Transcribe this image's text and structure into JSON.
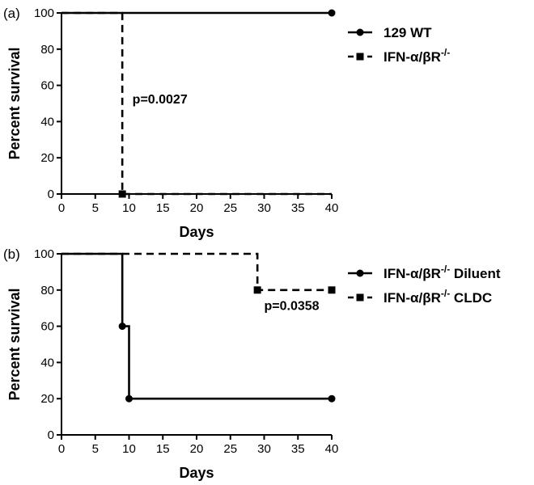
{
  "chart_data": [
    {
      "type": "line",
      "panel_label": "(a)",
      "xlabel": "Days",
      "ylabel": "Percent survival",
      "xlim": [
        0,
        40
      ],
      "ylim": [
        0,
        100
      ],
      "xticks": [
        "0",
        "5",
        "10",
        "15",
        "20",
        "25",
        "30",
        "35",
        "40"
      ],
      "yticks": [
        "0",
        "20",
        "40",
        "60",
        "80",
        "100"
      ],
      "legend_position": "right",
      "annotation": {
        "text": "p=0.0027",
        "x": 10.5,
        "y": 50
      },
      "series": [
        {
          "name": "129 WT",
          "style": "solid",
          "marker": "circle",
          "steps": [
            [
              0,
              100
            ],
            [
              40,
              100
            ]
          ],
          "markers": [
            [
              40,
              100
            ]
          ]
        },
        {
          "name": "IFN-α/βR",
          "name_superscript": "-/-",
          "style": "dashed",
          "marker": "square",
          "steps": [
            [
              0,
              100
            ],
            [
              9,
              100
            ],
            [
              9,
              0
            ],
            [
              40,
              0
            ]
          ],
          "markers": [
            [
              9,
              0
            ]
          ]
        }
      ]
    },
    {
      "type": "line",
      "panel_label": "(b)",
      "xlabel": "Days",
      "ylabel": "Percent survival",
      "xlim": [
        0,
        40
      ],
      "ylim": [
        0,
        100
      ],
      "xticks": [
        "0",
        "5",
        "10",
        "15",
        "20",
        "25",
        "30",
        "35",
        "40"
      ],
      "yticks": [
        "0",
        "20",
        "40",
        "60",
        "80",
        "100"
      ],
      "legend_position": "right",
      "annotation": {
        "text": "p=0.0358",
        "x": 30,
        "y": 69
      },
      "series": [
        {
          "name": "IFN-α/βR",
          "name_superscript": "-/-",
          "name_suffix": " Diluent",
          "style": "solid",
          "marker": "circle",
          "steps": [
            [
              0,
              100
            ],
            [
              9,
              100
            ],
            [
              9,
              60
            ],
            [
              10,
              60
            ],
            [
              10,
              20
            ],
            [
              40,
              20
            ]
          ],
          "markers": [
            [
              9,
              60
            ],
            [
              10,
              20
            ],
            [
              40,
              20
            ]
          ]
        },
        {
          "name": "IFN-α/βR",
          "name_superscript": "-/-",
          "name_suffix": " CLDC",
          "style": "dashed",
          "marker": "square",
          "steps": [
            [
              0,
              100
            ],
            [
              29,
              100
            ],
            [
              29,
              80
            ],
            [
              40,
              80
            ]
          ],
          "markers": [
            [
              29,
              80
            ],
            [
              40,
              80
            ]
          ]
        }
      ]
    }
  ]
}
